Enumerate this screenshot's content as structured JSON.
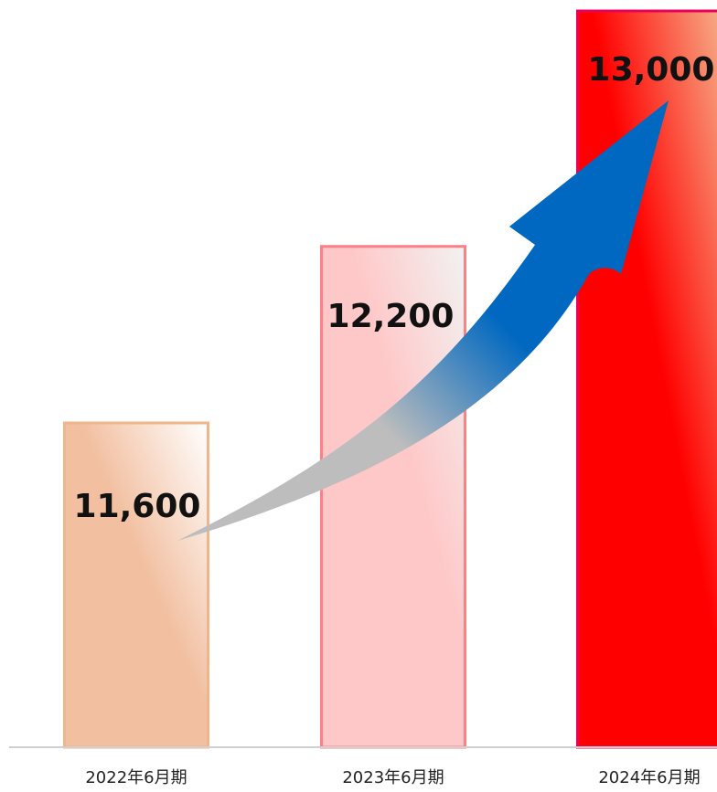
{
  "chart_data": {
    "type": "bar",
    "categories": [
      "2022年6月期",
      "2023年6月期",
      "2024年6月期"
    ],
    "values": [
      11600,
      12200,
      13000
    ],
    "value_labels": [
      "11,600",
      "12,200",
      "13,000"
    ],
    "title": "",
    "xlabel": "",
    "ylabel": "",
    "grid": false,
    "legend": "none",
    "annotation": "upward-trend-arrow",
    "colors": {
      "bar_2022_fill_start": "#f2bfa0",
      "bar_2022_fill_end": "#ffffff",
      "bar_2022_stroke": "#f0b58a",
      "bar_2023_fill_start": "#ffc8c8",
      "bar_2023_fill_end": "#f2f2f2",
      "bar_2023_stroke": "#ff7f86",
      "bar_2024_fill_start": "#ff0000",
      "bar_2024_fill_end": "#f6ad87",
      "bar_2024_stroke": "#e8005a",
      "arrow_start": "#bdbdbd",
      "arrow_end": "#0068c0",
      "baseline": "#d0d0d0"
    }
  }
}
